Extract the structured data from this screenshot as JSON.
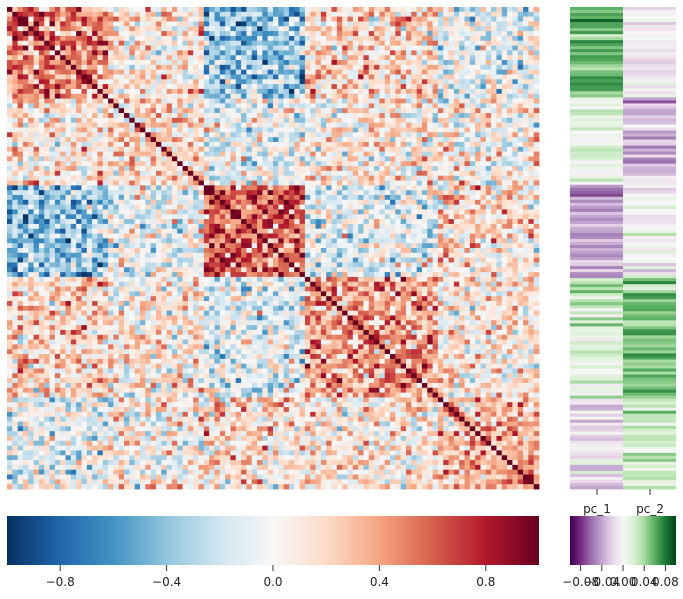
{
  "chart_data": [
    {
      "type": "heatmap",
      "name": "correlation-matrix",
      "title": "",
      "xlabel": "",
      "ylabel": "",
      "value_range": [
        -1.0,
        1.0
      ],
      "colormap": "RdBu_r",
      "diagonal_value": 1.0,
      "n_cells": 100,
      "block_boundaries_fraction": [
        0.0,
        0.19,
        0.37,
        0.56,
        0.81,
        1.0
      ],
      "block_means": [
        [
          0.45,
          0.1,
          -0.4,
          0.2,
          -0.1
        ],
        [
          0.1,
          0.15,
          -0.05,
          0.05,
          0.05
        ],
        [
          -0.4,
          -0.05,
          0.6,
          -0.1,
          0.15
        ],
        [
          0.2,
          0.05,
          -0.1,
          0.35,
          0.1
        ],
        [
          -0.1,
          0.05,
          0.15,
          0.1,
          0.35
        ]
      ],
      "colorbar": {
        "ticks": [
          -0.8,
          -0.4,
          0.0,
          0.4,
          0.8
        ],
        "tick_labels": [
          "−0.8",
          "−0.4",
          "0.0",
          "0.4",
          "0.8"
        ]
      }
    },
    {
      "type": "heatmap",
      "name": "principal-components",
      "title": "",
      "columns": [
        "pc_1",
        "pc_2"
      ],
      "value_range": [
        -0.1,
        0.1
      ],
      "colormap": "PRGn",
      "block_means": {
        "pc_1": [
          0.06,
          0.015,
          -0.045,
          0.02,
          -0.015
        ],
        "pc_2": [
          -0.005,
          -0.03,
          0.0,
          0.05,
          0.03
        ]
      },
      "colorbar": {
        "ticks": [
          -0.08,
          -0.04,
          0.0,
          0.04,
          0.08
        ],
        "tick_labels": [
          "−0.08",
          "−0.04",
          "0.00",
          "0.04",
          "0.08"
        ]
      }
    }
  ]
}
